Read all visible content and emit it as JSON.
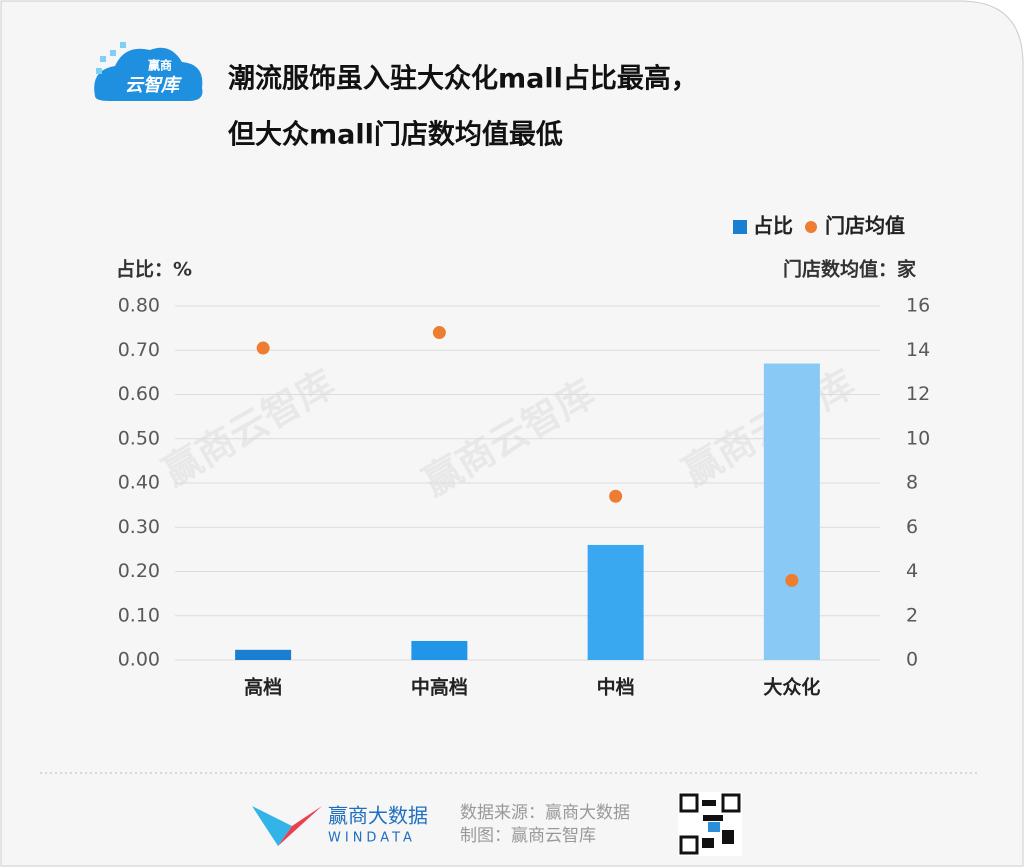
{
  "logo": {
    "top": "赢商",
    "bottom": "云智库"
  },
  "chart_data": {
    "type": "bar",
    "title": [
      "潮流服饰虽入驻大众化mall占比最高，",
      "但大众mall门店数均值最低"
    ],
    "y_label": "占比：%",
    "y2_label": "门店数均值：家",
    "watermark": "赢商云智库",
    "categories": [
      "高档",
      "中高档",
      "中档",
      "大众化"
    ],
    "series": [
      {
        "name": "占比",
        "color": "#1a7fd0",
        "colors": [
          "#1a7fd0",
          "#2196e8",
          "#3aa8f0",
          "#88c9f5"
        ],
        "values": [
          0.023,
          0.043,
          0.26,
          0.67
        ]
      },
      {
        "name": "门店均值",
        "type": "scatter",
        "axis": "y2",
        "color": "#ed7d31",
        "values": [
          14.1,
          14.8,
          7.4,
          3.6
        ]
      }
    ],
    "ylim": [
      0,
      0.8
    ],
    "yticks": [
      {
        "value": 0,
        "label": "0.00"
      },
      {
        "value": 0.1,
        "label": "0.10"
      },
      {
        "value": 0.2,
        "label": "0.20"
      },
      {
        "value": 0.3,
        "label": "0.30"
      },
      {
        "value": 0.4,
        "label": "0.40"
      },
      {
        "value": 0.5,
        "label": "0.50"
      },
      {
        "value": 0.6,
        "label": "0.60"
      },
      {
        "value": 0.7,
        "label": "0.70"
      },
      {
        "value": 0.8,
        "label": "0.80"
      }
    ],
    "y2lim": [
      0,
      16
    ],
    "y2ticks": [
      0,
      2,
      4,
      6,
      8,
      10,
      12,
      14,
      16
    ],
    "grid": true,
    "legend": "top-right"
  },
  "footer": {
    "brand": "赢商大数据",
    "brand_en": "WINDATA",
    "source": "数据来源：赢商大数据",
    "maker": "制图：赢商云智库"
  }
}
